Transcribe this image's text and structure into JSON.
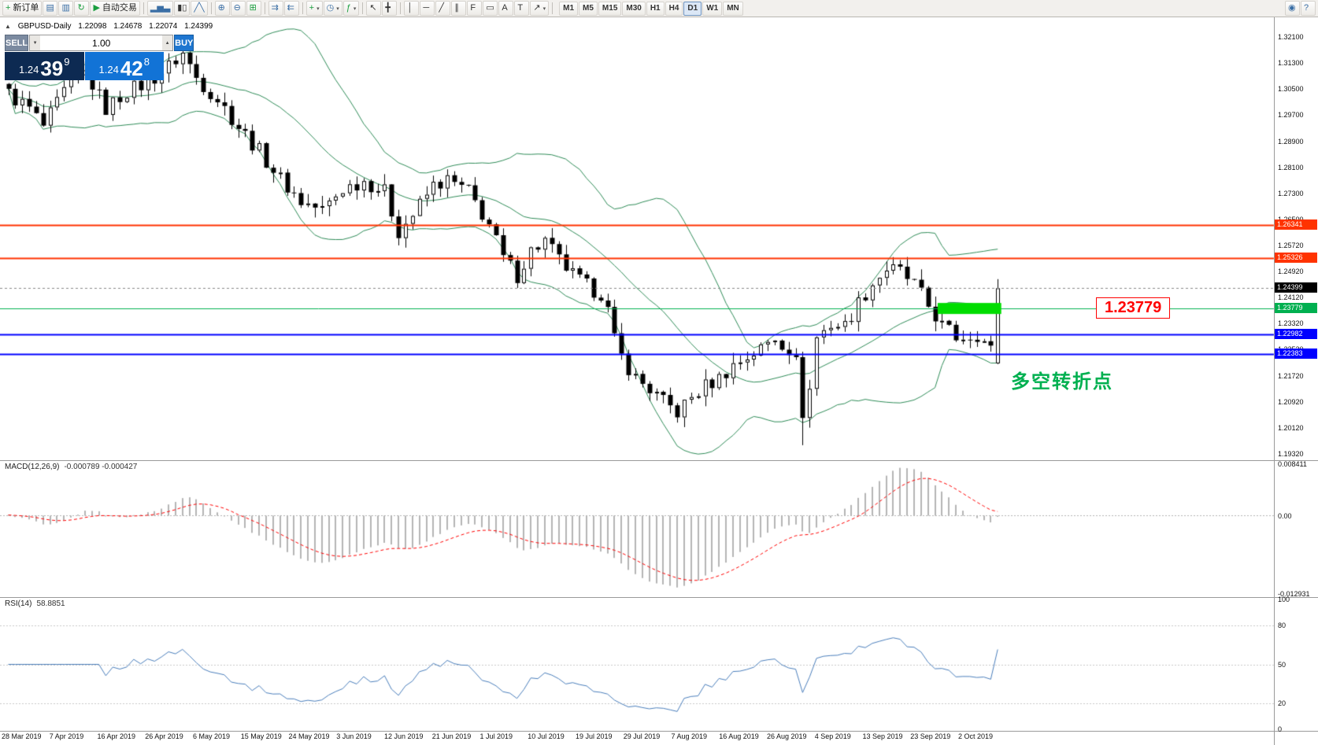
{
  "toolbar": {
    "items": [
      {
        "name": "new-order-button",
        "icon_name": "new-order-icon",
        "glyph": "+",
        "color": "#1a9e3f",
        "label": "新订单"
      },
      {
        "name": "chart-window-button",
        "icon_name": "chart-window-icon",
        "glyph": "▤",
        "color": "#3a6ea5"
      },
      {
        "name": "profiles-button",
        "icon_name": "profiles-icon",
        "glyph": "▥",
        "color": "#3a6ea5"
      },
      {
        "name": "refresh-button",
        "icon_name": "refresh-icon",
        "glyph": "↻",
        "color": "#1a9e3f"
      },
      {
        "name": "autotrading-button",
        "icon_name": "autotrading-play-icon",
        "glyph": "▶",
        "color": "#1a9e3f",
        "label": "自动交易"
      },
      {
        "type": "sep"
      },
      {
        "name": "bar-chart-button",
        "icon_name": "bar-chart-icon",
        "glyph": "▂▅▃",
        "color": "#3a6ea5"
      },
      {
        "name": "candlestick-chart-button",
        "icon_name": "candlestick-chart-icon",
        "glyph": "▮▯",
        "color": "#333333"
      },
      {
        "name": "line-chart-button",
        "icon_name": "line-chart-icon",
        "glyph": "╱╲",
        "color": "#3a6ea5"
      },
      {
        "type": "sep"
      },
      {
        "name": "zoom-in-button",
        "icon_name": "zoom-in-icon",
        "glyph": "⊕",
        "color": "#3a6ea5"
      },
      {
        "name": "zoom-out-button",
        "icon_name": "zoom-out-icon",
        "glyph": "⊖",
        "color": "#3a6ea5"
      },
      {
        "name": "tile-windows-button",
        "icon_name": "tile-windows-icon",
        "glyph": "⊞",
        "color": "#1a9e3f"
      },
      {
        "type": "sep"
      },
      {
        "name": "chart-shift-button",
        "icon_name": "chart-shift-icon",
        "glyph": "⇉",
        "color": "#3a6ea5"
      },
      {
        "name": "auto-scroll-button",
        "icon_name": "auto-scroll-icon",
        "glyph": "⇇",
        "color": "#3a6ea5"
      },
      {
        "type": "sep"
      },
      {
        "name": "new-chart-button",
        "icon_name": "new-chart-icon",
        "glyph": "+",
        "color": "#1a9e3f",
        "caret": true
      },
      {
        "name": "periods-button",
        "icon_name": "clock-icon",
        "glyph": "◷",
        "color": "#3a6ea5",
        "caret": true
      },
      {
        "name": "indicators-button",
        "icon_name": "indicators-icon",
        "glyph": "ƒ",
        "color": "#1a9e3f",
        "caret": true
      },
      {
        "type": "sep"
      },
      {
        "name": "cursor-button",
        "icon_name": "cursor-icon",
        "glyph": "↖",
        "color": "#333333"
      },
      {
        "name": "crosshair-button",
        "icon_name": "crosshair-icon",
        "glyph": "╋",
        "color": "#333333"
      },
      {
        "type": "sep"
      },
      {
        "name": "vertical-line-button",
        "icon_name": "vertical-line-icon",
        "glyph": "│",
        "color": "#333333"
      },
      {
        "name": "horizontal-line-button",
        "icon_name": "horizontal-line-icon",
        "glyph": "─",
        "color": "#333333"
      },
      {
        "name": "trendline-button",
        "icon_name": "trendline-icon",
        "glyph": "╱",
        "color": "#333333"
      },
      {
        "name": "channel-button",
        "icon_name": "channel-icon",
        "glyph": "∥",
        "color": "#333333"
      },
      {
        "name": "fibonacci-button",
        "icon_name": "fibonacci-icon",
        "glyph": "F",
        "color": "#333333"
      },
      {
        "name": "shapes-button",
        "icon_name": "shapes-icon",
        "glyph": "▭",
        "color": "#333333"
      },
      {
        "name": "text-button",
        "icon_name": "text-icon",
        "glyph": "A",
        "color": "#333333"
      },
      {
        "name": "text-label-button",
        "icon_name": "text-label-icon",
        "glyph": "T",
        "color": "#333333"
      },
      {
        "name": "arrows-button",
        "icon_name": "arrow-objects-icon",
        "glyph": "↗",
        "color": "#333333",
        "caret": true
      },
      {
        "type": "sep"
      }
    ],
    "timeframes": [
      "M1",
      "M5",
      "M15",
      "M30",
      "H1",
      "H4",
      "D1",
      "W1",
      "MN"
    ],
    "active_timeframe": "D1",
    "right_items": [
      {
        "name": "search-button",
        "icon_name": "search-icon",
        "glyph": "◉",
        "color": "#3a6ea5"
      },
      {
        "name": "help-button",
        "icon_name": "help-icon",
        "glyph": "?",
        "color": "#3a6ea5"
      }
    ]
  },
  "chart_header": {
    "collapse_glyph": "▲",
    "symbol": "GBPUSD-Daily",
    "open": "1.22098",
    "high": "1.24678",
    "low": "1.22074",
    "close": "1.24399"
  },
  "trade_panel": {
    "sell_label": "SELL",
    "buy_label": "BUY",
    "volume": "1.00",
    "vol_up_glyph": "▲",
    "vol_down_glyph": "▼",
    "sell_price": {
      "base": "1.24",
      "pips": "39",
      "point": "9"
    },
    "buy_price": {
      "base": "1.24",
      "pips": "42",
      "point": "8"
    }
  },
  "current_price": {
    "label": "1.24399",
    "value": 1.24399,
    "tag_bg": "#000000"
  },
  "annotations": {
    "price_callout": {
      "text": "1.23779",
      "color": "#ff0000"
    },
    "note": {
      "text": "多空转折点",
      "color": "#00b050"
    },
    "highlight_zone": {
      "price": 1.23779,
      "from_index": 134,
      "to_index": 142,
      "color": "#00dd00"
    }
  },
  "indicators": {
    "bollinger": {
      "period": 20,
      "deviation": 2
    },
    "macd": {
      "label": "MACD(12,26,9)",
      "values": "-0.000789 -0.000427",
      "fast": 12,
      "slow": 26,
      "signal": 9,
      "scale_max": "0.008411",
      "scale_zero": "0.00",
      "scale_min": "-0.012931"
    },
    "rsi": {
      "label": "RSI(14)",
      "value": "58.8851",
      "period": 14,
      "levels": [
        100,
        80,
        50,
        20,
        0
      ]
    }
  },
  "colors": {
    "resistance_line": "#ff3300",
    "support_blue": "#0000ff",
    "pivot_green": "#00b050",
    "macd_histogram": "#b4b4b4",
    "macd_signal": "#ff0000",
    "rsi_line": "#4a7ebb",
    "bollinger": "#2e8b57",
    "candle_up": "#ffffff",
    "candle_down": "#000000"
  },
  "chart_data": {
    "type": "candlestick",
    "symbol": "GBPUSD",
    "timeframe": "Daily",
    "title_ohlc": {
      "open": "1.22098",
      "high": "1.24678",
      "low": "1.22074",
      "close": "1.24399"
    },
    "price_range": {
      "top": 1.327,
      "bottom": 1.1913
    },
    "candle_count": 143,
    "noise_close": 0.005,
    "noise_wick": 0.0032,
    "last_candle": {
      "o": 1.22098,
      "h": 1.24678,
      "l": 1.22074,
      "c": 1.24399
    },
    "wick_extremes": [
      {
        "index": 25,
        "high": 1.3185
      },
      {
        "index": 114,
        "low": 1.1959
      }
    ],
    "close_path_anchors": [
      [
        0,
        1.3035
      ],
      [
        3,
        1.299
      ],
      [
        5,
        1.2935
      ],
      [
        8,
        1.304
      ],
      [
        11,
        1.31
      ],
      [
        14,
        1.299
      ],
      [
        17,
        1.3045
      ],
      [
        20,
        1.307
      ],
      [
        23,
        1.312
      ],
      [
        25,
        1.316
      ],
      [
        27,
        1.3085
      ],
      [
        30,
        1.302
      ],
      [
        33,
        1.2935
      ],
      [
        36,
        1.286
      ],
      [
        39,
        1.2775
      ],
      [
        42,
        1.2705
      ],
      [
        45,
        1.268
      ],
      [
        48,
        1.2745
      ],
      [
        51,
        1.277
      ],
      [
        54,
        1.2735
      ],
      [
        56,
        1.2615
      ],
      [
        58,
        1.2665
      ],
      [
        61,
        1.2755
      ],
      [
        63,
        1.277
      ],
      [
        66,
        1.2735
      ],
      [
        69,
        1.2635
      ],
      [
        71,
        1.253
      ],
      [
        73,
        1.248
      ],
      [
        75,
        1.2555
      ],
      [
        77,
        1.2585
      ],
      [
        79,
        1.2525
      ],
      [
        81,
        1.248
      ],
      [
        83,
        1.2445
      ],
      [
        85,
        1.2425
      ],
      [
        86,
        1.237
      ],
      [
        87,
        1.228
      ],
      [
        88,
        1.223
      ],
      [
        90,
        1.2165
      ],
      [
        92,
        1.213
      ],
      [
        94,
        1.209
      ],
      [
        96,
        1.206
      ],
      [
        98,
        1.2105
      ],
      [
        100,
        1.214
      ],
      [
        102,
        1.2165
      ],
      [
        104,
        1.2205
      ],
      [
        106,
        1.223
      ],
      [
        108,
        1.2255
      ],
      [
        110,
        1.229
      ],
      [
        112,
        1.2255
      ],
      [
        113,
        1.221
      ],
      [
        114,
        1.206
      ],
      [
        115,
        1.213
      ],
      [
        116,
        1.229
      ],
      [
        118,
        1.233
      ],
      [
        120,
        1.2325
      ],
      [
        122,
        1.2395
      ],
      [
        124,
        1.2455
      ],
      [
        126,
        1.25
      ],
      [
        128,
        1.249
      ],
      [
        130,
        1.245
      ],
      [
        132,
        1.2385
      ],
      [
        134,
        1.2325
      ],
      [
        136,
        1.229
      ],
      [
        139,
        1.23
      ],
      [
        141,
        1.225
      ],
      [
        142,
        1.244
      ]
    ],
    "hlines": [
      {
        "price": 1.26341,
        "label": "1.26341",
        "color": "#ff3300",
        "width": 2
      },
      {
        "price": 1.25326,
        "label": "1.25326",
        "color": "#ff3300",
        "width": 2
      },
      {
        "price": 1.23779,
        "label": "1.23779",
        "color": "#00b050",
        "width": 1
      },
      {
        "price": 1.22982,
        "label": "1.22982",
        "color": "#0000ff",
        "width": 2
      },
      {
        "price": 1.22383,
        "label": "1.22383",
        "color": "#0000ff",
        "width": 2
      }
    ],
    "y_axis_labels": [
      "1.32100",
      "1.31300",
      "1.30500",
      "1.29700",
      "1.28900",
      "1.28100",
      "1.27300",
      "1.26500",
      "1.25720",
      "1.24920",
      "1.24120",
      "1.23320",
      "1.22520",
      "1.21720",
      "1.20920",
      "1.20120",
      "1.19320"
    ],
    "x_axis_dates": [
      "28 Mar 2019",
      "7 Apr 2019",
      "16 Apr 2019",
      "26 Apr 2019",
      "6 May 2019",
      "15 May 2019",
      "24 May 2019",
      "3 Jun 2019",
      "12 Jun 2019",
      "21 Jun 2019",
      "1 Jul 2019",
      "10 Jul 2019",
      "19 Jul 2019",
      "29 Jul 2019",
      "7 Aug 2019",
      "16 Aug 2019",
      "26 Aug 2019",
      "4 Sep 2019",
      "13 Sep 2019",
      "23 Sep 2019",
      "2 Oct 2019"
    ]
  }
}
